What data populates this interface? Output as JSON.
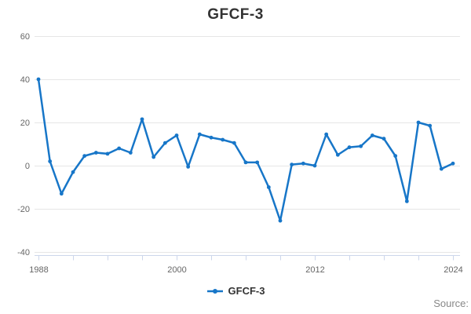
{
  "title": "GFCF-3",
  "legend": {
    "label": "GFCF-3"
  },
  "source_label": "Source:",
  "colors": {
    "series": "#1776c8",
    "grid": "#e6e6e6",
    "axis_line": "#ccd6eb",
    "tick_label": "#666666",
    "title": "#333333",
    "source": "#888888",
    "background": "#ffffff"
  },
  "chart_data": {
    "type": "line",
    "title": "GFCF-3",
    "xlabel": "",
    "ylabel": "",
    "ylim": [
      -40,
      60
    ],
    "y_ticks": [
      60,
      40,
      20,
      0,
      -20,
      -40
    ],
    "x_range": [
      1988,
      2024
    ],
    "x_tick_interval_years": 3,
    "x_labeled_ticks": [
      1988,
      2000,
      2012,
      2024
    ],
    "grid": "horizontal",
    "legend_position": "bottom-center",
    "marker": "circle",
    "series": [
      {
        "name": "GFCF-3",
        "x": [
          1988,
          1989,
          1990,
          1991,
          1992,
          1993,
          1994,
          1995,
          1996,
          1997,
          1998,
          1999,
          2000,
          2001,
          2002,
          2003,
          2004,
          2005,
          2006,
          2007,
          2008,
          2009,
          2010,
          2011,
          2012,
          2013,
          2014,
          2015,
          2016,
          2017,
          2018,
          2019,
          2020,
          2021,
          2022,
          2023,
          2024
        ],
        "values": [
          40,
          2,
          -13,
          -3,
          4.5,
          6,
          5.5,
          8,
          6,
          21.5,
          4,
          10.5,
          14,
          -0.5,
          14.5,
          13,
          12,
          10.5,
          1.5,
          1.5,
          -10,
          -25.5,
          0.5,
          1,
          0,
          14.5,
          5,
          8.5,
          9,
          14,
          12.5,
          4.5,
          -16.5,
          20,
          18.5,
          -1.5,
          1
        ]
      }
    ]
  }
}
